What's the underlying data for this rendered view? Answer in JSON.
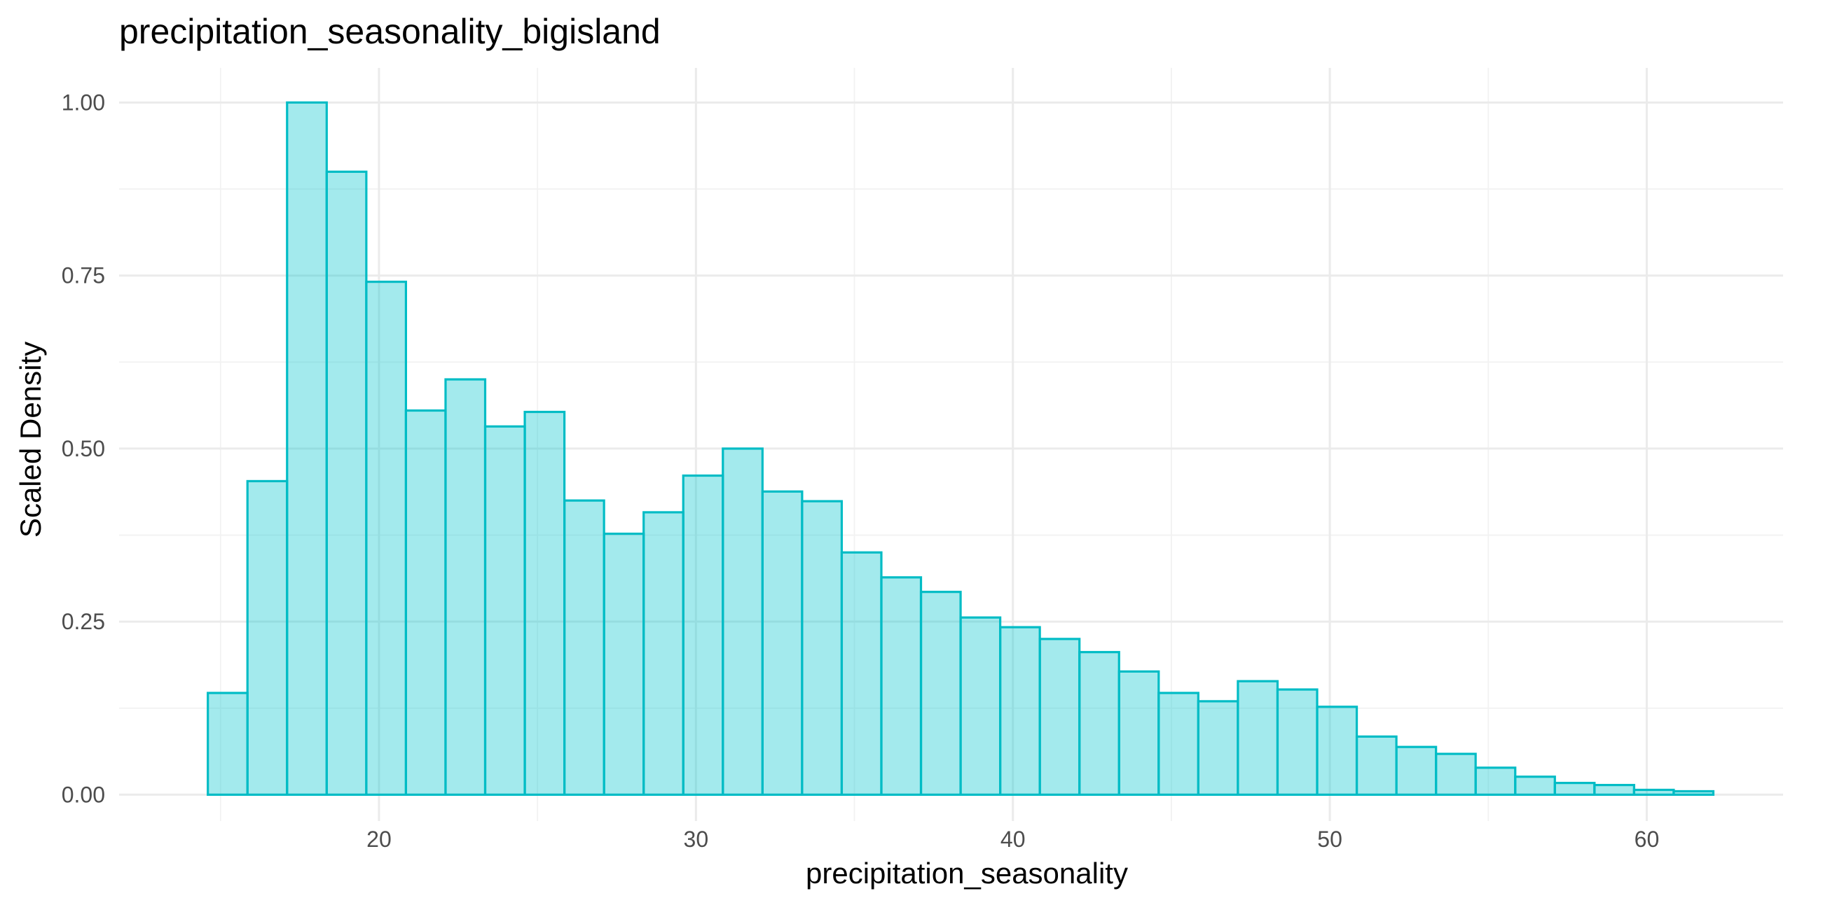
{
  "chart_data": {
    "type": "bar",
    "title": "precipitation_seasonality_bigisland",
    "xlabel": "precipitation_seasonality",
    "ylabel": "Scaled Density",
    "xlim": [
      11.8,
      64.3
    ],
    "ylim": [
      -0.038,
      1.05
    ],
    "x_ticks": [
      20,
      30,
      40,
      50,
      60
    ],
    "y_ticks": [
      0.0,
      0.25,
      0.5,
      0.75,
      1.0
    ],
    "x_tick_labels": [
      "20",
      "30",
      "40",
      "50",
      "60"
    ],
    "y_tick_labels": [
      "0.00",
      "0.25",
      "0.50",
      "0.75",
      "1.00"
    ],
    "grid": true,
    "fill_color": "#00C5CD",
    "fill_opacity": 0.36,
    "edge_color": "#00BCC5",
    "bin_width": 1.25,
    "bin_start": 14.6,
    "values": [
      0.147,
      0.453,
      1.0,
      0.9,
      0.741,
      0.555,
      0.6,
      0.532,
      0.553,
      0.425,
      0.377,
      0.408,
      0.461,
      0.5,
      0.438,
      0.424,
      0.35,
      0.314,
      0.293,
      0.256,
      0.242,
      0.225,
      0.206,
      0.178,
      0.147,
      0.135,
      0.164,
      0.152,
      0.127,
      0.084,
      0.069,
      0.059,
      0.039,
      0.026,
      0.017,
      0.014,
      0.007,
      0.005
    ]
  }
}
